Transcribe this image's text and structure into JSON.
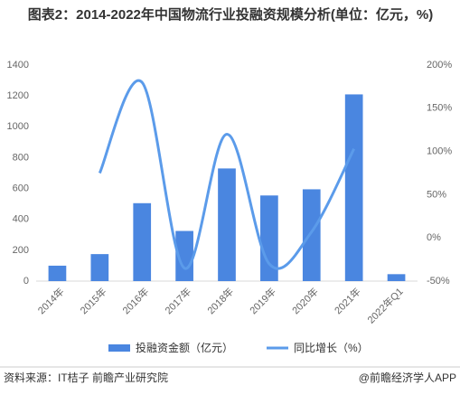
{
  "chart_data": {
    "type": "bar-line",
    "title": "图表2：2014-2022年中国物流行业投融资规模分析(单位：亿元，%)",
    "categories": [
      "2014年",
      "2015年",
      "2016年",
      "2017年",
      "2018年",
      "2019年",
      "2020年",
      "2021年",
      "2022年Q1"
    ],
    "series": [
      {
        "name": "投融资金额（亿元）",
        "type": "bar",
        "color": "#4a86e0",
        "values": [
          100,
          175,
          505,
          325,
          730,
          555,
          595,
          1210,
          45
        ]
      },
      {
        "name": "同比增长（%）",
        "type": "line",
        "axis": "y2",
        "color": "#5b9bea",
        "values": [
          null,
          75,
          180,
          -35,
          120,
          -30,
          7,
          103,
          null
        ]
      }
    ],
    "ylim": [
      0,
      1400
    ],
    "yticks": [
      0,
      200,
      400,
      600,
      800,
      1000,
      1200,
      1400
    ],
    "y2lim": [
      -50,
      200
    ],
    "y2ticks": [
      {
        "value": -50,
        "label": "-50%"
      },
      {
        "value": 0,
        "label": "0%"
      },
      {
        "value": 50,
        "label": "50%"
      },
      {
        "value": 100,
        "label": "100%"
      },
      {
        "value": 150,
        "label": "150%"
      },
      {
        "value": 200,
        "label": "200%"
      }
    ],
    "grid": false,
    "source": "资料来源：IT桔子 前瞻产业研究院",
    "brand": "@前瞻经济学人APP"
  }
}
